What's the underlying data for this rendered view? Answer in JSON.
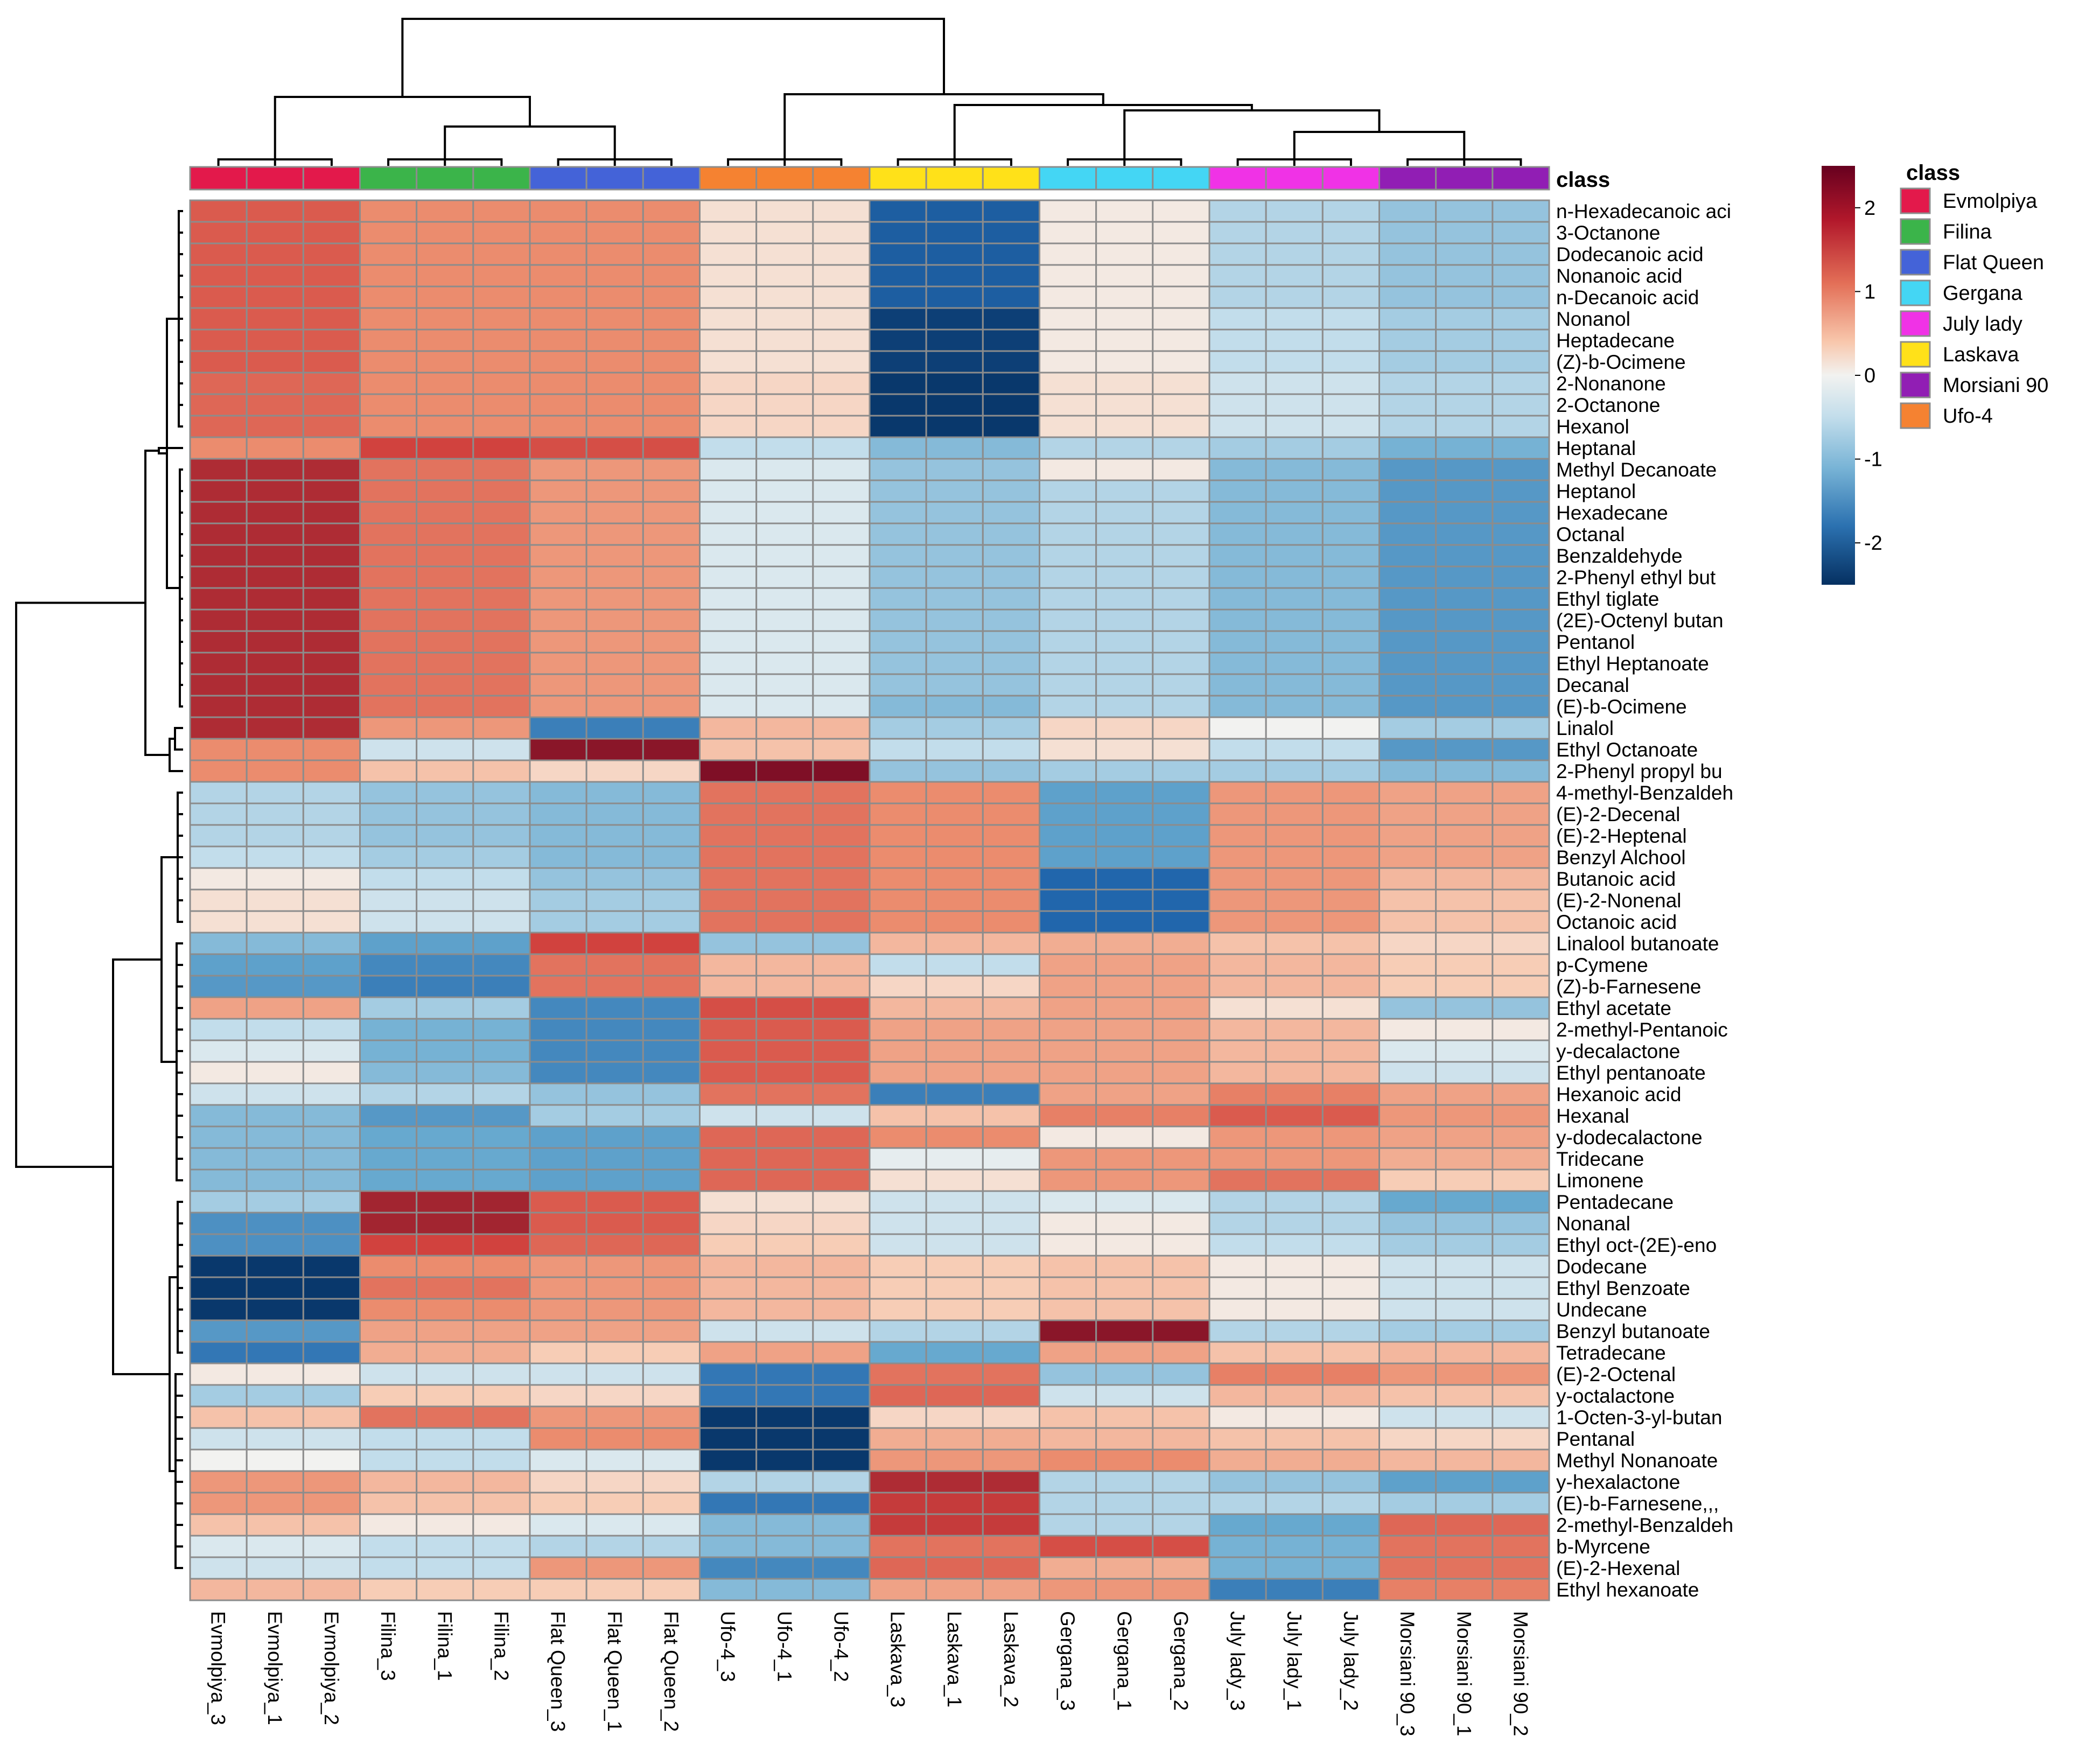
{
  "chart_data": {
    "type": "heatmap",
    "annotation_title": "class",
    "legend_title": "class",
    "colorbar_ticks": [
      "2",
      "1",
      "0",
      "-1",
      "-2"
    ],
    "value_range": [
      -2.5,
      2.5
    ],
    "palette": {
      "low": "#053061",
      "mid": "#f2f2f0",
      "high": "#67001f"
    },
    "classes": [
      {
        "name": "Evmolpiya",
        "color": "#e3194b"
      },
      {
        "name": "Filina",
        "color": "#3bb44a"
      },
      {
        "name": "Flat Queen",
        "color": "#4463d8"
      },
      {
        "name": "Gergana",
        "color": "#44d6f4"
      },
      {
        "name": "July lady",
        "color": "#f032e6"
      },
      {
        "name": "Laskava",
        "color": "#ffe119"
      },
      {
        "name": "Morsiani 90",
        "color": "#911eb4"
      },
      {
        "name": "Ufo-4",
        "color": "#f58231"
      }
    ],
    "column_groups": [
      {
        "class": "Evmolpiya",
        "columns": [
          "Evmolpiya_3",
          "Evmolpiya_1",
          "Evmolpiya_2"
        ]
      },
      {
        "class": "Filina",
        "columns": [
          "Filina_3",
          "Filina_1",
          "Filina_2"
        ]
      },
      {
        "class": "Flat Queen",
        "columns": [
          "Flat Queen_3",
          "Flat Queen_1",
          "Flat Queen_2"
        ]
      },
      {
        "class": "Ufo-4",
        "columns": [
          "Ufo-4_3",
          "Ufo-4_1",
          "Ufo-4_2"
        ]
      },
      {
        "class": "Laskava",
        "columns": [
          "Laskava_3",
          "Laskava_1",
          "Laskava_2"
        ]
      },
      {
        "class": "Gergana",
        "columns": [
          "Gergana_3",
          "Gergana_1",
          "Gergana_2"
        ]
      },
      {
        "class": "July lady",
        "columns": [
          "July lady_3",
          "July lady_1",
          "July lady_2"
        ]
      },
      {
        "class": "Morsiani 90",
        "columns": [
          "Morsiani 90_3",
          "Morsiani 90_1",
          "Morsiani 90_2"
        ]
      }
    ],
    "group_order": [
      "Evmolpiya",
      "Filina",
      "Flat Queen",
      "Ufo-4",
      "Laskava",
      "Gergana",
      "July lady",
      "Morsiani 90"
    ],
    "rows": [
      {
        "name": "n-Hexadecanoic aci",
        "values": [
          1.4,
          1.0,
          1.0,
          0.2,
          -1.9,
          0.1,
          -0.5,
          -0.7
        ]
      },
      {
        "name": "3-Octanone",
        "values": [
          1.4,
          1.0,
          1.0,
          0.2,
          -1.9,
          0.1,
          -0.5,
          -0.7
        ]
      },
      {
        "name": "Dodecanoic acid",
        "values": [
          1.4,
          1.0,
          1.0,
          0.2,
          -1.9,
          0.1,
          -0.5,
          -0.7
        ]
      },
      {
        "name": "Nonanoic acid",
        "values": [
          1.4,
          1.0,
          1.0,
          0.2,
          -1.9,
          0.1,
          -0.5,
          -0.7
        ]
      },
      {
        "name": "n-Decanoic acid",
        "values": [
          1.4,
          1.0,
          1.0,
          0.2,
          -1.9,
          0.1,
          -0.5,
          -0.7
        ]
      },
      {
        "name": "Nonanol",
        "values": [
          1.4,
          1.0,
          1.0,
          0.2,
          -2.3,
          0.1,
          -0.4,
          -0.6
        ]
      },
      {
        "name": "Heptadecane",
        "values": [
          1.4,
          1.0,
          1.0,
          0.2,
          -2.3,
          0.1,
          -0.4,
          -0.6
        ]
      },
      {
        "name": "(Z)-b-Ocimene",
        "values": [
          1.4,
          1.0,
          1.0,
          0.2,
          -2.3,
          0.1,
          -0.4,
          -0.6
        ]
      },
      {
        "name": "2-Nonanone",
        "values": [
          1.3,
          1.0,
          1.0,
          0.3,
          -2.4,
          0.2,
          -0.3,
          -0.5
        ]
      },
      {
        "name": "2-Octanone",
        "values": [
          1.3,
          1.0,
          1.0,
          0.3,
          -2.4,
          0.2,
          -0.3,
          -0.5
        ]
      },
      {
        "name": "Hexanol",
        "values": [
          1.3,
          1.0,
          1.0,
          0.3,
          -2.4,
          0.2,
          -0.3,
          -0.5
        ]
      },
      {
        "name": "Heptanal",
        "values": [
          1.0,
          1.6,
          1.5,
          -0.4,
          -0.8,
          -0.5,
          -0.6,
          -0.9
        ]
      },
      {
        "name": "Methyl Decanoate",
        "values": [
          1.9,
          1.2,
          0.9,
          -0.2,
          -0.7,
          0.1,
          -0.8,
          -1.2
        ]
      },
      {
        "name": "Heptanol",
        "values": [
          1.9,
          1.2,
          0.9,
          -0.2,
          -0.7,
          -0.5,
          -0.8,
          -1.2
        ]
      },
      {
        "name": "Hexadecane",
        "values": [
          1.9,
          1.2,
          0.9,
          -0.2,
          -0.7,
          -0.5,
          -0.8,
          -1.2
        ]
      },
      {
        "name": "Octanal",
        "values": [
          1.9,
          1.2,
          0.9,
          -0.2,
          -0.7,
          -0.5,
          -0.8,
          -1.2
        ]
      },
      {
        "name": "Benzaldehyde",
        "values": [
          1.9,
          1.2,
          0.9,
          -0.2,
          -0.7,
          -0.5,
          -0.8,
          -1.2
        ]
      },
      {
        "name": "2-Phenyl ethyl but",
        "values": [
          1.9,
          1.2,
          0.9,
          -0.2,
          -0.7,
          -0.5,
          -0.8,
          -1.2
        ]
      },
      {
        "name": "Ethyl tiglate",
        "values": [
          1.9,
          1.2,
          0.9,
          -0.2,
          -0.7,
          -0.5,
          -0.8,
          -1.2
        ]
      },
      {
        "name": "(2E)-Octenyl butan",
        "values": [
          1.9,
          1.2,
          0.9,
          -0.2,
          -0.7,
          -0.5,
          -0.8,
          -1.2
        ]
      },
      {
        "name": "Pentanol",
        "values": [
          1.9,
          1.2,
          0.9,
          -0.2,
          -0.7,
          -0.5,
          -0.8,
          -1.2
        ]
      },
      {
        "name": "Ethyl Heptanoate",
        "values": [
          1.9,
          1.2,
          0.9,
          -0.2,
          -0.7,
          -0.5,
          -0.8,
          -1.2
        ]
      },
      {
        "name": "Decanal",
        "values": [
          1.9,
          1.2,
          0.9,
          -0.2,
          -0.7,
          -0.5,
          -0.8,
          -1.2
        ]
      },
      {
        "name": "(E)-b-Ocimene",
        "values": [
          1.9,
          1.2,
          0.9,
          -0.2,
          -0.8,
          -0.5,
          -0.8,
          -1.2
        ]
      },
      {
        "name": "Linalol",
        "values": [
          1.9,
          0.9,
          -1.5,
          0.6,
          -0.6,
          0.3,
          0.0,
          -0.6
        ]
      },
      {
        "name": "Ethyl Octanoate",
        "values": [
          1.0,
          -0.3,
          2.2,
          0.5,
          -0.4,
          0.2,
          -0.4,
          -1.2
        ]
      },
      {
        "name": "2-Phenyl propyl bu",
        "values": [
          1.0,
          0.5,
          0.3,
          2.3,
          -0.7,
          -0.6,
          -0.6,
          -0.8
        ]
      },
      {
        "name": "4-methyl-Benzaldeh",
        "values": [
          -0.5,
          -0.7,
          -0.8,
          1.2,
          1.0,
          -1.1,
          0.9,
          0.8
        ]
      },
      {
        "name": "(E)-2-Decenal",
        "values": [
          -0.5,
          -0.7,
          -0.8,
          1.2,
          1.0,
          -1.1,
          0.9,
          0.8
        ]
      },
      {
        "name": "(E)-2-Heptenal",
        "values": [
          -0.5,
          -0.7,
          -0.8,
          1.2,
          1.0,
          -1.1,
          0.9,
          0.8
        ]
      },
      {
        "name": "Benzyl Alchool",
        "values": [
          -0.4,
          -0.6,
          -0.8,
          1.2,
          1.0,
          -1.1,
          0.9,
          0.8
        ]
      },
      {
        "name": "Butanoic acid",
        "values": [
          0.1,
          -0.4,
          -0.7,
          1.2,
          1.0,
          -1.8,
          0.9,
          0.6
        ]
      },
      {
        "name": "(E)-2-Nonenal",
        "values": [
          0.2,
          -0.3,
          -0.6,
          1.2,
          1.0,
          -1.8,
          0.9,
          0.5
        ]
      },
      {
        "name": "Octanoic acid",
        "values": [
          0.2,
          -0.3,
          -0.6,
          1.2,
          1.0,
          -1.8,
          0.9,
          0.5
        ]
      },
      {
        "name": "Linalool butanoate",
        "values": [
          -0.8,
          -1.1,
          1.6,
          -0.7,
          0.6,
          0.7,
          0.5,
          0.3
        ]
      },
      {
        "name": "p-Cymene",
        "values": [
          -1.1,
          -1.4,
          1.2,
          0.6,
          -0.4,
          0.8,
          0.6,
          0.4
        ]
      },
      {
        "name": "(Z)-b-Farnesene",
        "values": [
          -1.2,
          -1.5,
          1.2,
          0.6,
          0.3,
          0.8,
          0.6,
          0.4
        ]
      },
      {
        "name": "Ethyl acetate",
        "values": [
          0.8,
          -0.6,
          -1.4,
          1.5,
          0.6,
          0.8,
          0.2,
          -0.7
        ]
      },
      {
        "name": "2-methyl-Pentanoic",
        "values": [
          -0.4,
          -0.9,
          -1.4,
          1.4,
          0.8,
          0.8,
          0.6,
          0.1
        ]
      },
      {
        "name": "y-decalactone",
        "values": [
          -0.2,
          -0.9,
          -1.4,
          1.4,
          0.8,
          0.8,
          0.6,
          -0.2
        ]
      },
      {
        "name": "Ethyl pentanoate",
        "values": [
          0.1,
          -0.8,
          -1.4,
          1.4,
          0.8,
          0.8,
          0.6,
          -0.3
        ]
      },
      {
        "name": "Hexanoic acid",
        "values": [
          -0.3,
          -0.5,
          -0.7,
          1.2,
          -1.5,
          0.8,
          1.1,
          0.8
        ]
      },
      {
        "name": "Hexanal",
        "values": [
          -0.8,
          -1.2,
          -0.6,
          -0.3,
          0.5,
          1.1,
          1.4,
          0.9
        ]
      },
      {
        "name": "y-dodecalactone",
        "values": [
          -0.8,
          -1.0,
          -1.1,
          1.3,
          1.0,
          0.1,
          0.9,
          0.8
        ]
      },
      {
        "name": "Tridecane",
        "values": [
          -0.8,
          -1.0,
          -1.1,
          1.3,
          -0.1,
          0.9,
          0.9,
          0.7
        ]
      },
      {
        "name": "Limonene",
        "values": [
          -0.8,
          -1.0,
          -1.1,
          1.3,
          0.2,
          0.9,
          1.2,
          0.4
        ]
      },
      {
        "name": "Pentadecane",
        "values": [
          -0.6,
          2.0,
          1.4,
          0.2,
          -0.3,
          -0.2,
          -0.5,
          -1.0
        ]
      },
      {
        "name": "Nonanal",
        "values": [
          -1.3,
          2.0,
          1.4,
          0.3,
          -0.3,
          0.1,
          -0.5,
          -0.7
        ]
      },
      {
        "name": "Ethyl oct-(2E)-eno",
        "values": [
          -1.3,
          1.6,
          1.3,
          0.4,
          -0.3,
          0.1,
          -0.4,
          -0.6
        ]
      },
      {
        "name": "Dodecane",
        "values": [
          -2.4,
          1.0,
          0.9,
          0.6,
          0.4,
          0.5,
          0.1,
          -0.3
        ]
      },
      {
        "name": "Ethyl Benzoate",
        "values": [
          -2.4,
          1.2,
          0.9,
          0.6,
          0.4,
          0.5,
          0.1,
          -0.3
        ]
      },
      {
        "name": "Undecane",
        "values": [
          -2.4,
          1.0,
          0.9,
          0.6,
          0.4,
          0.5,
          0.1,
          -0.3
        ]
      },
      {
        "name": "Benzyl butanoate",
        "values": [
          -1.2,
          0.8,
          0.8,
          -0.3,
          -0.5,
          2.2,
          -0.5,
          -0.6
        ]
      },
      {
        "name": "Tetradecane",
        "values": [
          -1.6,
          0.7,
          0.4,
          0.8,
          -1.0,
          0.8,
          0.5,
          0.6
        ]
      },
      {
        "name": "(E)-2-Octenal",
        "values": [
          0.1,
          -0.3,
          -0.3,
          -1.6,
          1.2,
          -0.7,
          1.1,
          0.9
        ]
      },
      {
        "name": "y-octalactone",
        "values": [
          -0.6,
          0.4,
          0.3,
          -1.6,
          1.3,
          -0.3,
          0.6,
          0.5
        ]
      },
      {
        "name": "1-Octen-3-yl-butan",
        "values": [
          0.5,
          1.2,
          0.9,
          -2.4,
          0.3,
          0.5,
          0.1,
          -0.3
        ]
      },
      {
        "name": "Pentanal",
        "values": [
          -0.3,
          -0.4,
          1.0,
          -2.4,
          0.7,
          0.6,
          0.5,
          0.3
        ]
      },
      {
        "name": "Methyl Nonanoate",
        "values": [
          0.0,
          -0.4,
          -0.2,
          -2.4,
          0.9,
          1.0,
          0.7,
          0.6
        ]
      },
      {
        "name": "y-hexalactone",
        "values": [
          0.9,
          0.6,
          0.3,
          -0.5,
          1.9,
          -0.5,
          -0.7,
          -1.1
        ]
      },
      {
        "name": "(E)-b-Farnesene,,,",
        "values": [
          0.9,
          0.5,
          0.4,
          -1.6,
          1.7,
          -0.5,
          -0.5,
          -0.6
        ]
      },
      {
        "name": "2-methyl-Benzaldeh",
        "values": [
          0.5,
          0.1,
          -0.2,
          -0.8,
          1.7,
          -0.5,
          -1.0,
          1.3
        ]
      },
      {
        "name": "b-Myrcene",
        "values": [
          -0.2,
          -0.4,
          -0.5,
          -0.8,
          1.2,
          1.5,
          -0.9,
          1.2
        ]
      },
      {
        "name": "(E)-2-Hexenal",
        "values": [
          -0.3,
          -0.4,
          0.9,
          -1.4,
          1.3,
          0.7,
          -0.9,
          1.2
        ]
      },
      {
        "name": "Ethyl hexanoate",
        "values": [
          0.6,
          0.4,
          0.4,
          -0.8,
          0.8,
          0.9,
          -1.5,
          1.1
        ]
      }
    ]
  }
}
